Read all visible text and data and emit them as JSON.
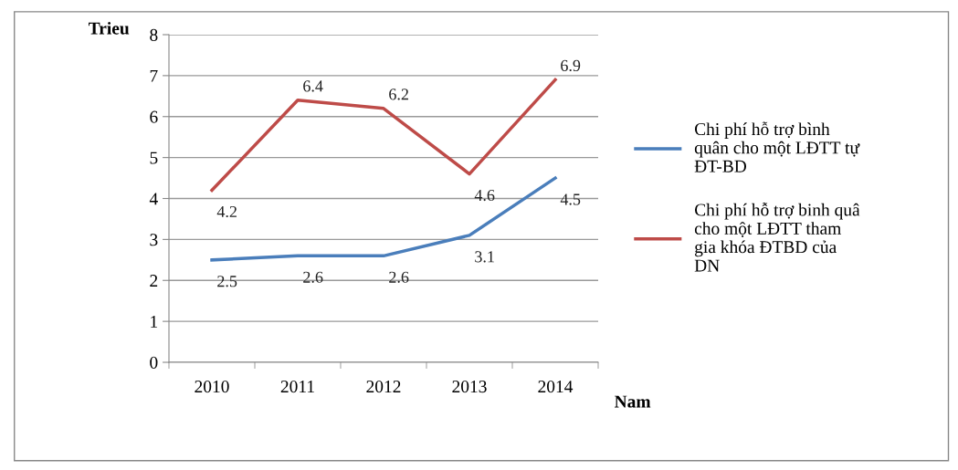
{
  "chart_data": {
    "type": "line",
    "ylabel": "Trieu",
    "xlabel": "Nam",
    "categories": [
      "2010",
      "2011",
      "2012",
      "2013",
      "2014"
    ],
    "series": [
      {
        "name": "Chi phí hỗ trợ bình\nquân cho một LĐTT tự\nĐT-BD",
        "color": "#4a7ebb",
        "values": [
          2.5,
          2.6,
          2.6,
          3.1,
          4.5
        ]
      },
      {
        "name": "Chi phí hỗ trợ binh quâ\ncho một LĐTT tham\ngia khóa ĐTBD của\nDN",
        "color": "#be4b48",
        "values": [
          4.2,
          6.4,
          6.2,
          4.6,
          6.9
        ]
      }
    ],
    "ylim": [
      0,
      8
    ],
    "yticks": [
      0,
      1,
      2,
      3,
      4,
      5,
      6,
      7,
      8
    ],
    "grid": "y",
    "legend": "right",
    "data_labels": true,
    "marker": "none",
    "line_style": "solid"
  }
}
